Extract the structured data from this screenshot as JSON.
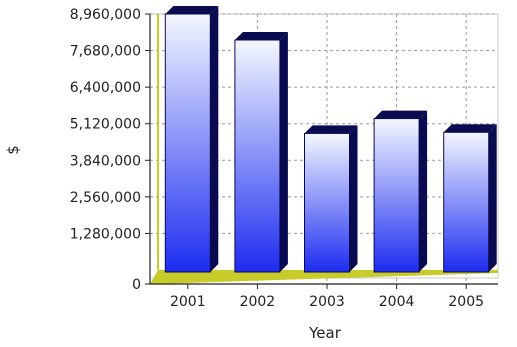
{
  "chart_data": {
    "type": "bar",
    "xlabel": "Year",
    "ylabel": "$",
    "categories": [
      "2001",
      "2002",
      "2003",
      "2004",
      "2005"
    ],
    "values": [
      8960000,
      8050000,
      4780000,
      5300000,
      4820000
    ],
    "ylim": [
      0,
      8960000
    ],
    "yticks": [
      0,
      1280000,
      2560000,
      3840000,
      5120000,
      6400000,
      7680000,
      8960000
    ],
    "yticklabels": [
      "0",
      "1,280,000",
      "2,560,000",
      "3,840,000",
      "5,120,000",
      "6,400,000",
      "7,680,000",
      "8,960,000"
    ],
    "grid": true,
    "bar_style": "3d",
    "colors": {
      "bar_top": "#f4f7ff",
      "bar_bottom": "#1d2cf0",
      "bar_side": "#0a0a50",
      "floor": "#c8cc2a",
      "grid": "#9a9a9a"
    }
  }
}
